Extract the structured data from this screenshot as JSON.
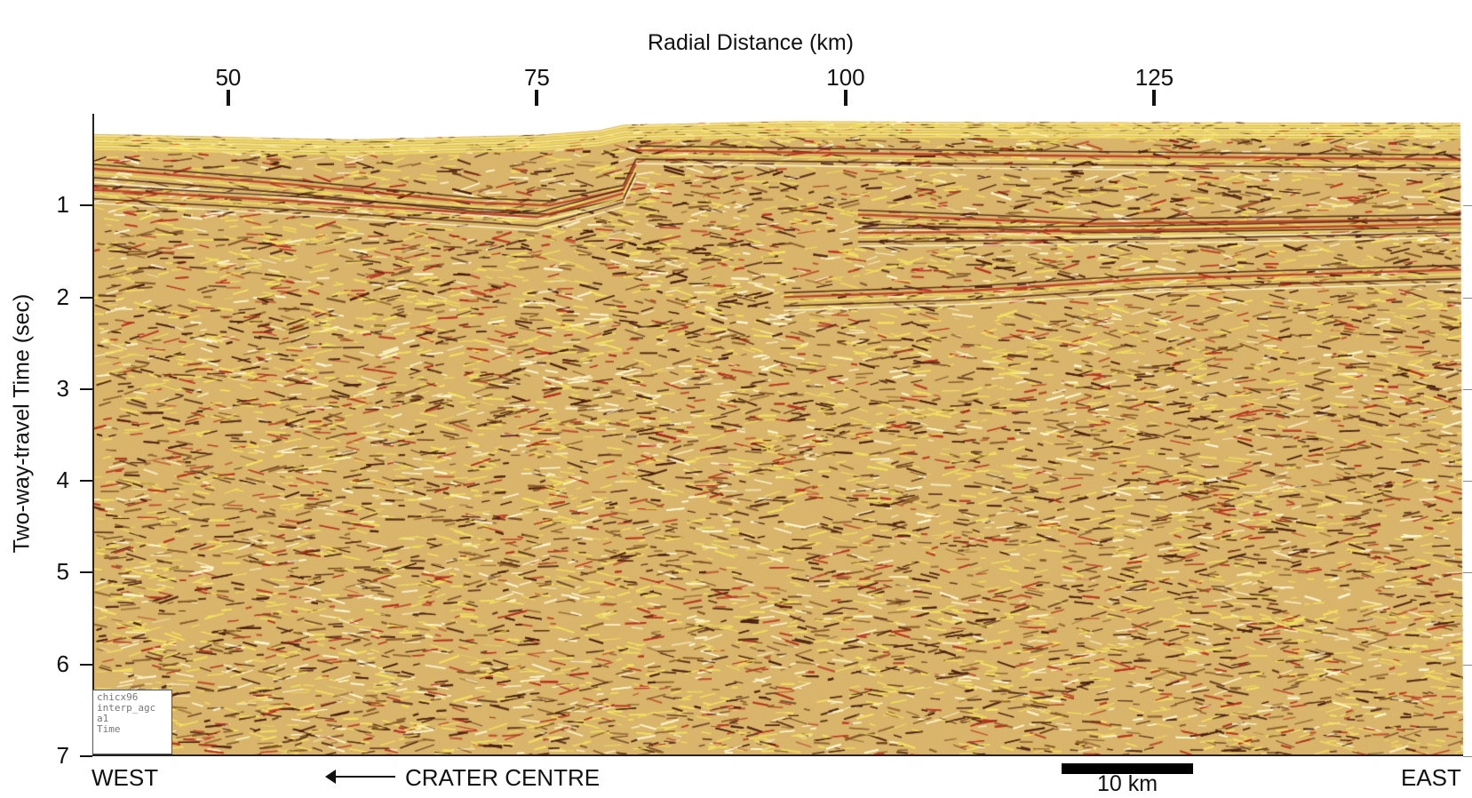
{
  "x_axis": {
    "title": "Radial Distance (km)",
    "ticks": [
      {
        "value": 50,
        "label": "50"
      },
      {
        "value": 75,
        "label": "75"
      },
      {
        "value": 100,
        "label": "100"
      },
      {
        "value": 125,
        "label": "125"
      }
    ],
    "range": [
      39,
      150
    ]
  },
  "y_axis": {
    "title": "Two-way-travel Time (sec)",
    "ticks": [
      {
        "value": 1,
        "label": "1"
      },
      {
        "value": 2,
        "label": "2"
      },
      {
        "value": 3,
        "label": "3"
      },
      {
        "value": 4,
        "label": "4"
      },
      {
        "value": 5,
        "label": "5"
      },
      {
        "value": 6,
        "label": "6"
      },
      {
        "value": 7,
        "label": "7"
      }
    ],
    "range": [
      0,
      7
    ],
    "inverted": true
  },
  "section_info": {
    "lines": [
      "chicx96",
      "interp_agc",
      "a1",
      "Time"
    ]
  },
  "orientation": {
    "left": "WEST",
    "right": "EAST",
    "crater_direction": "CRATER CENTRE"
  },
  "scale_bar": {
    "label": "10 km",
    "length_km": 10
  },
  "colors": {
    "background": "#d8b56a",
    "trough": "#f3df61",
    "peak": "#4a1e10",
    "reflector": "#b8321f",
    "highlight": "#fff8d2"
  },
  "seabed_profile": [
    {
      "km": 39,
      "t": 0.22
    },
    {
      "km": 60,
      "t": 0.28
    },
    {
      "km": 75,
      "t": 0.23
    },
    {
      "km": 80,
      "t": 0.18
    },
    {
      "km": 82,
      "t": 0.12
    },
    {
      "km": 96,
      "t": 0.08
    },
    {
      "km": 110,
      "t": 0.09
    },
    {
      "km": 150,
      "t": 0.1
    }
  ],
  "reflectors": [
    {
      "points": [
        [
          39,
          0.55
        ],
        [
          55,
          0.72
        ],
        [
          70,
          0.92
        ],
        [
          76,
          0.95
        ],
        [
          82,
          0.78
        ],
        [
          83,
          0.5
        ]
      ]
    },
    {
      "points": [
        [
          39,
          0.78
        ],
        [
          55,
          0.9
        ],
        [
          75,
          1.08
        ],
        [
          82,
          0.82
        ]
      ]
    },
    {
      "points": [
        [
          101,
          1.05
        ],
        [
          120,
          1.15
        ],
        [
          150,
          1.1
        ]
      ]
    },
    {
      "points": [
        [
          101,
          1.25
        ],
        [
          125,
          1.22
        ],
        [
          150,
          1.15
        ]
      ]
    },
    {
      "points": [
        [
          95,
          1.95
        ],
        [
          110,
          1.88
        ],
        [
          125,
          1.75
        ],
        [
          150,
          1.65
        ]
      ]
    },
    {
      "points": [
        [
          83,
          0.35
        ],
        [
          110,
          0.4
        ],
        [
          150,
          0.45
        ]
      ]
    }
  ]
}
